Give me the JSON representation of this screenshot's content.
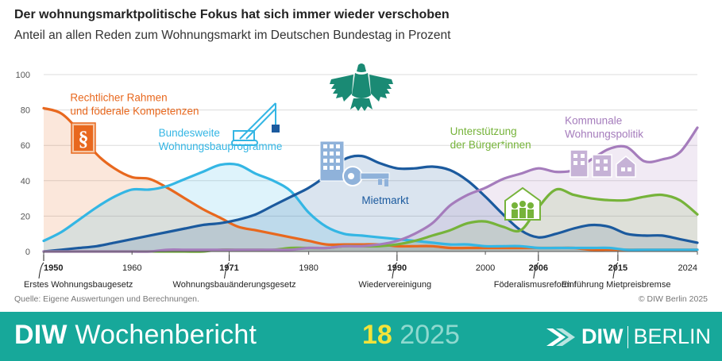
{
  "title": "Der wohnungsmarktpolitische Fokus hat sich immer wieder verschoben",
  "subtitle": "Anteil an allen Reden zum Wohnungsmarkt im Deutschen Bundestag in Prozent",
  "source": "Quelle: Eigene Auswertungen und Berechnungen.",
  "copyright": "© DIW Berlin 2025",
  "footer": {
    "brand_bold": "DIW",
    "brand_rest": " Wochenbericht",
    "issue_number": "18",
    "issue_year": "2025",
    "logo_bold": "DIW",
    "logo_rest": "BERLIN",
    "colors": {
      "background": "#17a89a",
      "issue_number": "#f3e33a",
      "issue_year": "#8fd9cf"
    }
  },
  "icons": [
    "paragraph-icon",
    "crane-icon",
    "apartment-building-icon",
    "key-icon",
    "group-house-icon",
    "houses-icon",
    "bundestag-eagle-icon"
  ],
  "chart_data": {
    "type": "area",
    "title": "Der wohnungsmarktpolitische Fokus hat sich immer wieder verschoben",
    "subtitle": "Anteil an allen Reden zum Wohnungsmarkt im Deutschen Bundestag in Prozent",
    "ylim": [
      0,
      100
    ],
    "xlim": [
      1950,
      2024
    ],
    "yticks": [
      0,
      20,
      40,
      60,
      80,
      100
    ],
    "xticks": [
      1950,
      1960,
      1971,
      1980,
      1990,
      2000,
      2006,
      2015,
      2024
    ],
    "xticks_bold": [
      1950,
      1971,
      1990,
      2006,
      2015
    ],
    "grid": true,
    "events": [
      {
        "year": 1950,
        "label": "Erstes Wohnungsbaugesetz"
      },
      {
        "year": 1971,
        "label": "Wohnungsbauänderungsgesetz"
      },
      {
        "year": 1990,
        "label": "Wiedervereinigung"
      },
      {
        "year": 2006,
        "label": "Föderalismusreform I"
      },
      {
        "year": 2015,
        "label": "Einführung Mietpreisbremse"
      }
    ],
    "x": [
      1950,
      1952,
      1954,
      1956,
      1958,
      1960,
      1962,
      1964,
      1966,
      1968,
      1970,
      1972,
      1974,
      1976,
      1978,
      1980,
      1982,
      1984,
      1986,
      1988,
      1990,
      1992,
      1994,
      1996,
      1998,
      2000,
      2002,
      2004,
      2006,
      2008,
      2010,
      2012,
      2014,
      2016,
      2018,
      2020,
      2022,
      2024
    ],
    "series": [
      {
        "name": "Rechtlicher Rahmen und föderale Kompetenzen",
        "color": "#e8681e",
        "label_lines": [
          "Rechtlicher Rahmen",
          "und föderale Kompetenzen"
        ],
        "values": [
          81,
          78,
          68,
          55,
          47,
          42,
          41,
          36,
          30,
          24,
          19,
          14,
          12,
          10,
          8,
          6,
          4,
          4,
          4,
          4,
          3,
          3,
          3,
          2,
          2,
          2,
          2,
          2,
          2,
          2,
          2,
          1,
          1,
          1,
          1,
          1,
          1,
          1
        ]
      },
      {
        "name": "Bundesweite Wohnungsbauprogramme",
        "color": "#34b6e4",
        "label_lines": [
          "Bundesweite",
          "Wohnungsbauprogramme"
        ],
        "values": [
          6,
          11,
          18,
          25,
          31,
          35,
          35,
          37,
          41,
          45,
          49,
          49,
          44,
          40,
          34,
          22,
          14,
          10,
          9,
          8,
          7,
          6,
          5,
          4,
          4,
          3,
          3,
          3,
          2,
          2,
          2,
          2,
          2,
          1,
          1,
          1,
          1,
          1
        ]
      },
      {
        "name": "Mietmarkt",
        "color": "#1b5a9e",
        "label_lines": [
          "Mietmarkt"
        ],
        "values": [
          0,
          1,
          2,
          3,
          5,
          7,
          9,
          11,
          13,
          15,
          16,
          18,
          21,
          26,
          31,
          36,
          43,
          52,
          54,
          50,
          47,
          47,
          48,
          46,
          40,
          31,
          21,
          12,
          8,
          10,
          13,
          15,
          14,
          10,
          9,
          9,
          7,
          5
        ]
      },
      {
        "name": "Unterstützung der Bürger*innen",
        "color": "#76b33a",
        "label_lines": [
          "Unterstützung",
          "der Bürger*innen"
        ],
        "values": [
          0,
          0,
          0,
          0,
          0,
          0,
          0,
          0,
          0,
          0,
          1,
          1,
          1,
          1,
          2,
          2,
          2,
          3,
          3,
          3,
          4,
          6,
          9,
          12,
          16,
          17,
          14,
          12,
          25,
          35,
          32,
          30,
          29,
          29,
          31,
          32,
          29,
          21
        ]
      },
      {
        "name": "Kommunale Wohnungspolitik",
        "color": "#a57cbc",
        "label_lines": [
          "Kommunale",
          "Wohnungspolitik"
        ],
        "values": [
          0,
          0,
          0,
          0,
          0,
          0,
          0,
          1,
          1,
          1,
          1,
          1,
          1,
          1,
          1,
          2,
          2,
          3,
          3,
          4,
          6,
          10,
          16,
          26,
          32,
          36,
          41,
          44,
          47,
          45,
          46,
          52,
          58,
          59,
          51,
          52,
          56,
          70
        ]
      }
    ]
  }
}
